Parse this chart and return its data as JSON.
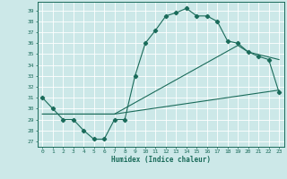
{
  "xlabel": "Humidex (Indice chaleur)",
  "bg_color": "#cce8e8",
  "grid_color": "#ffffff",
  "line_color": "#1a6b5a",
  "xlim": [
    -0.5,
    23.5
  ],
  "ylim": [
    26.5,
    39.8
  ],
  "yticks": [
    27,
    28,
    29,
    30,
    31,
    32,
    33,
    34,
    35,
    36,
    37,
    38,
    39
  ],
  "xticks": [
    0,
    1,
    2,
    3,
    4,
    5,
    6,
    7,
    8,
    9,
    10,
    11,
    12,
    13,
    14,
    15,
    16,
    17,
    18,
    19,
    20,
    21,
    22,
    23
  ],
  "line1_x": [
    0,
    1,
    2,
    3,
    4,
    5,
    6,
    7,
    8,
    9,
    10,
    11,
    12,
    13,
    14,
    15,
    16,
    17,
    18,
    19,
    20,
    21,
    22,
    23
  ],
  "line1_y": [
    31.0,
    30.0,
    29.0,
    29.0,
    28.0,
    27.2,
    27.2,
    29.0,
    29.0,
    33.0,
    36.0,
    37.2,
    38.5,
    38.8,
    39.2,
    38.5,
    38.5,
    38.0,
    36.2,
    36.0,
    35.2,
    34.8,
    34.5,
    31.5
  ],
  "line2_x": [
    0,
    7,
    23
  ],
  "line2_y": [
    29.5,
    29.5,
    31.7
  ],
  "line3_x": [
    0,
    7,
    19,
    20,
    23
  ],
  "line3_y": [
    29.5,
    29.5,
    35.8,
    35.2,
    34.5
  ]
}
